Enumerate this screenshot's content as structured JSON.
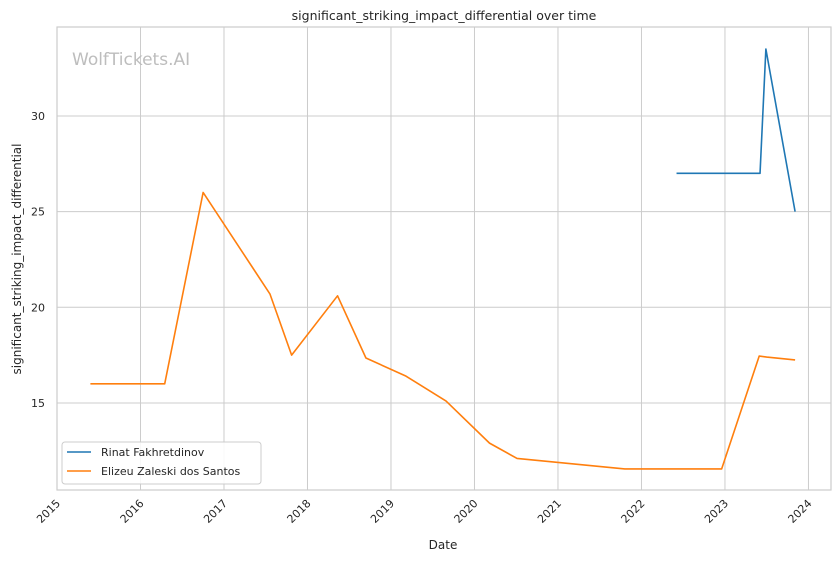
{
  "chart_data": {
    "type": "line",
    "title": "significant_striking_impact_differential over time",
    "xlabel": "Date",
    "ylabel": "significant_striking_impact_differential",
    "watermark": "WolfTickets.AI",
    "xlim": [
      2015.0,
      2024.27
    ],
    "ylim": [
      10.45,
      34.65
    ],
    "xticks": [
      2015,
      2016,
      2017,
      2018,
      2019,
      2020,
      2021,
      2022,
      2023,
      2024
    ],
    "yticks": [
      15,
      20,
      25,
      30
    ],
    "grid": true,
    "legend_position": "lower-left",
    "series": [
      {
        "name": "Rinat Fakhretdinov",
        "color": "#1f77b4",
        "x": [
          2022.42,
          2023.42,
          2023.49,
          2023.84
        ],
        "y": [
          27.0,
          27.0,
          33.5,
          25.0
        ]
      },
      {
        "name": "Elizeu Zaleski dos Santos",
        "color": "#ff7f0e",
        "x": [
          2015.4,
          2016.29,
          2016.75,
          2017.55,
          2017.81,
          2018.36,
          2018.7,
          2019.18,
          2019.66,
          2020.18,
          2020.51,
          2021.8,
          2022.96,
          2023.41,
          2023.5,
          2023.84
        ],
        "y": [
          16.0,
          16.0,
          26.0,
          20.7,
          17.5,
          20.6,
          17.35,
          16.4,
          15.1,
          12.9,
          12.1,
          11.55,
          11.55,
          17.45,
          17.4,
          17.25
        ]
      }
    ]
  }
}
